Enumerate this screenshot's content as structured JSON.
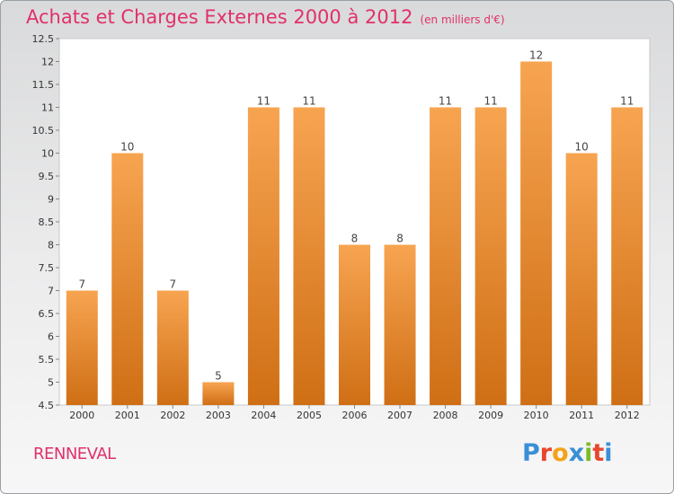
{
  "header": {
    "title": "Achats et Charges Externes 2000 à 2012",
    "subtitle": "(en milliers d'€)"
  },
  "footer": {
    "commune": "RENNEVAL",
    "logo": [
      "P",
      "r",
      "o",
      "x",
      "i",
      "t",
      "i"
    ]
  },
  "colors": {
    "bar_top": "#f7a451",
    "bar_bottom": "#cf6f15",
    "title": "#e0306a",
    "logo": [
      "#3a8fd6",
      "#e8462e",
      "#f4a21a",
      "#3a8fd6",
      "#7abb2a",
      "#e8462e",
      "#3a8fd6"
    ]
  },
  "chart_data": {
    "type": "bar",
    "title": "Achats et Charges Externes 2000 à 2012",
    "subtitle": "(en milliers d'€)",
    "categories": [
      "2000",
      "2001",
      "2002",
      "2003",
      "2004",
      "2005",
      "2006",
      "2007",
      "2008",
      "2009",
      "2010",
      "2011",
      "2012"
    ],
    "values": [
      7,
      10,
      7,
      5,
      11,
      11,
      8,
      8,
      11,
      11,
      12,
      10,
      11
    ],
    "ylim": [
      4.5,
      12.5
    ],
    "yticks": [
      "4.5",
      "5",
      "5.5",
      "6",
      "6.5",
      "7",
      "7.5",
      "8",
      "8.5",
      "9",
      "9.5",
      "10",
      "10.5",
      "11",
      "11.5",
      "12",
      "12.5"
    ],
    "grid": false,
    "legend": "none"
  }
}
